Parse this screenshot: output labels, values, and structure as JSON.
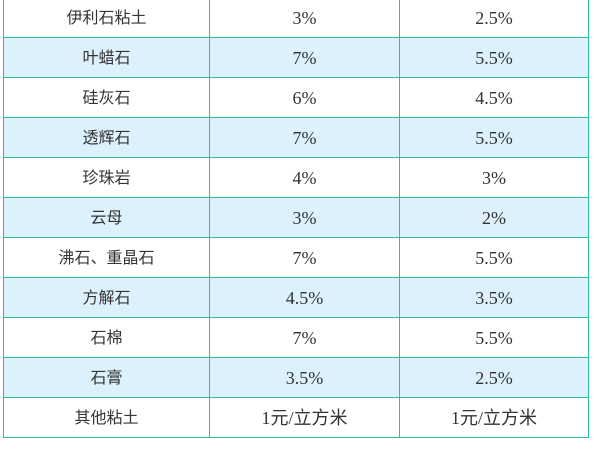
{
  "table": {
    "rows": [
      {
        "name": "伊利石粘土",
        "col2": "3%",
        "col3": "2.5%"
      },
      {
        "name": "叶蜡石",
        "col2": "7%",
        "col3": "5.5%"
      },
      {
        "name": "硅灰石",
        "col2": "6%",
        "col3": "4.5%"
      },
      {
        "name": "透辉石",
        "col2": "7%",
        "col3": "5.5%"
      },
      {
        "name": "珍珠岩",
        "col2": "4%",
        "col3": "3%"
      },
      {
        "name": "云母",
        "col2": "3%",
        "col3": "2%"
      },
      {
        "name": "沸石、重晶石",
        "col2": "7%",
        "col3": "5.5%"
      },
      {
        "name": "方解石",
        "col2": "4.5%",
        "col3": "3.5%"
      },
      {
        "name": "石棉",
        "col2": "7%",
        "col3": "5.5%"
      },
      {
        "name": "石膏",
        "col2": "3.5%",
        "col3": "2.5%"
      },
      {
        "name": "其他粘土",
        "col2": "1元/立方米",
        "col3": "1元/立方米"
      }
    ]
  },
  "colors": {
    "border": "#2bbf9a",
    "shaded_row": "#dcf1fb",
    "plain_row": "#ffffff",
    "text": "#333333"
  }
}
